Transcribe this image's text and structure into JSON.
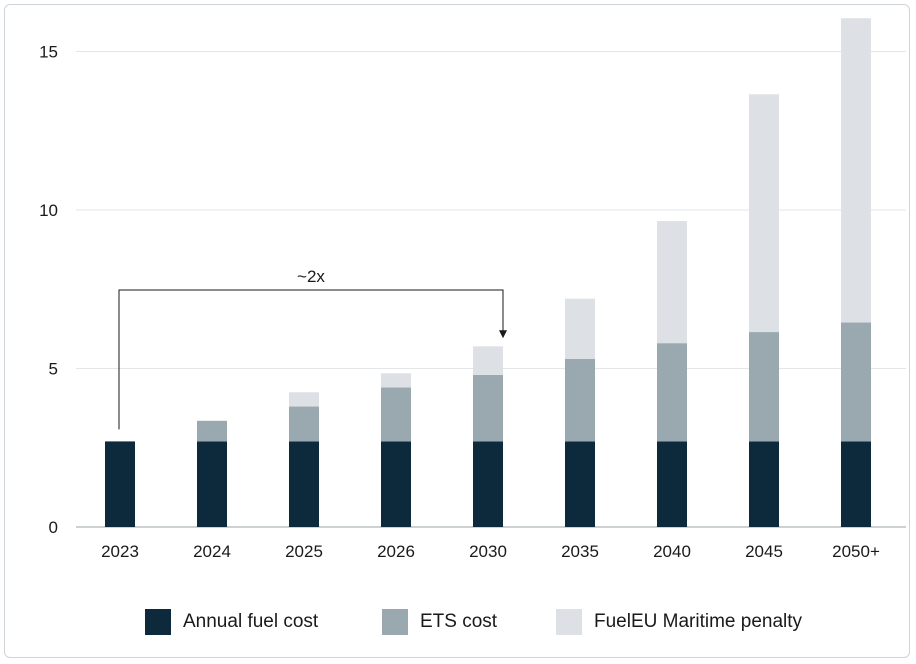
{
  "chart_data": {
    "type": "bar",
    "stacked": true,
    "categories": [
      "2023",
      "2024",
      "2025",
      "2026",
      "2030",
      "2035",
      "2040",
      "2045",
      "2050+"
    ],
    "series": [
      {
        "name": "Annual fuel cost",
        "color": "#0d2a3c",
        "values": [
          2.7,
          2.7,
          2.7,
          2.7,
          2.7,
          2.7,
          2.7,
          2.7,
          2.7
        ]
      },
      {
        "name": "ETS cost",
        "color": "#9aa8b0",
        "values": [
          0.0,
          0.65,
          1.1,
          1.7,
          2.1,
          2.6,
          3.1,
          3.45,
          3.75
        ]
      },
      {
        "name": "FuelEU Maritime penalty",
        "color": "#dde1e5",
        "values": [
          0.0,
          0.0,
          0.45,
          0.45,
          0.9,
          1.9,
          3.85,
          7.5,
          9.6
        ]
      }
    ],
    "yticks": [
      0,
      5,
      10,
      15
    ],
    "ylim": [
      0,
      16.2
    ],
    "grid": true,
    "legend": "bottom",
    "annotation": {
      "text": "~2x",
      "from": "2023",
      "to": "2030"
    }
  }
}
